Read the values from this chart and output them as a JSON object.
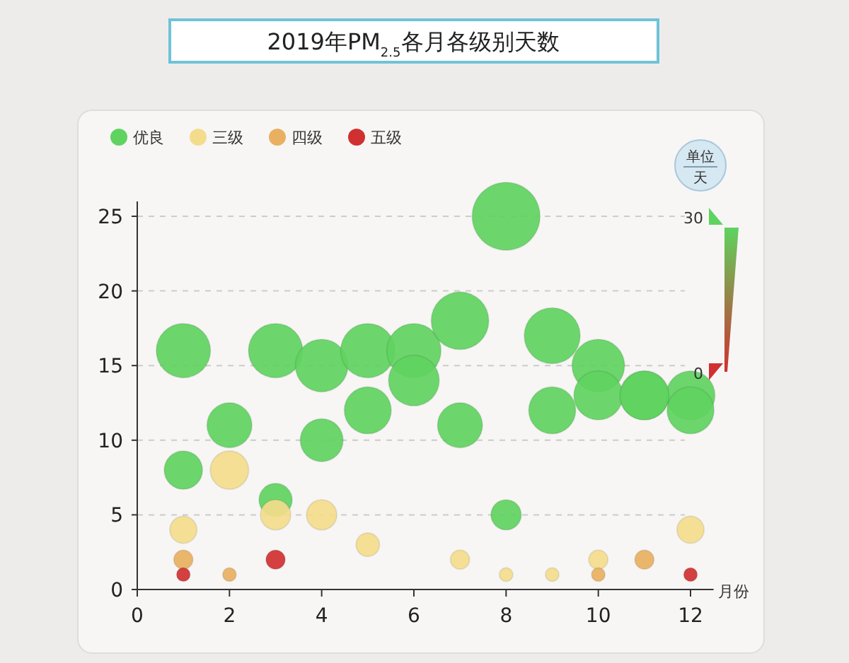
{
  "chart_data": {
    "type": "bubble",
    "title": "2019年PM$_{2.5}$各月各级别天数",
    "xlabel": "月份",
    "annotations": [
      "单位",
      "天",
      "30",
      "0"
    ],
    "xlim": [
      0,
      12.5
    ],
    "xticks": [
      0,
      2,
      4,
      6,
      8,
      10,
      12
    ],
    "ylim": [
      0,
      26
    ],
    "yticks": [
      0,
      5,
      10,
      15,
      20,
      25
    ],
    "grid": "y",
    "legend": "top left",
    "marker": "circle",
    "series": [
      {
        "name": "优良",
        "color": "#5fd35f",
        "x": [
          1,
          2,
          3,
          4,
          5,
          6,
          7,
          8,
          9,
          10,
          11,
          12,
          1,
          3,
          4,
          5,
          6,
          7,
          8,
          9,
          10,
          11,
          12
        ],
        "values": [
          16,
          11,
          16,
          15,
          16,
          16,
          18,
          25,
          17,
          15,
          13,
          13,
          8,
          6,
          10,
          12,
          14,
          11,
          5,
          12,
          13,
          13,
          12
        ],
        "sizes": [
          0.64,
          0.44,
          0.64,
          0.6,
          0.64,
          0.64,
          0.72,
          1,
          0.68,
          0.6,
          0.52,
          0.52,
          0.32,
          0.24,
          0.4,
          0.48,
          0.56,
          0.44,
          0.2,
          0.48,
          0.52,
          0.52,
          0.48
        ]
      },
      {
        "name": "三级",
        "color": "#f3dc8c",
        "x": [
          1,
          2,
          3,
          4,
          5,
          7,
          8,
          9,
          10,
          12
        ],
        "values": [
          4,
          8,
          5,
          5,
          3,
          2,
          1,
          1,
          2,
          4
        ],
        "sizes": [
          0.16,
          0.32,
          0.2,
          0.2,
          0.12,
          0.08,
          0.04,
          0.04,
          0.08,
          0.16
        ]
      },
      {
        "name": "四级",
        "color": "#e8b060",
        "x": [
          1,
          2,
          10,
          11
        ],
        "values": [
          2,
          1,
          1,
          2
        ],
        "sizes": [
          0.08,
          0.04,
          0.04,
          0.08
        ]
      },
      {
        "name": "五级",
        "color": "#d03030",
        "x": [
          1,
          3,
          12
        ],
        "values": [
          1,
          2,
          1
        ],
        "sizes": [
          0.04,
          0.08,
          0.04
        ]
      }
    ]
  }
}
